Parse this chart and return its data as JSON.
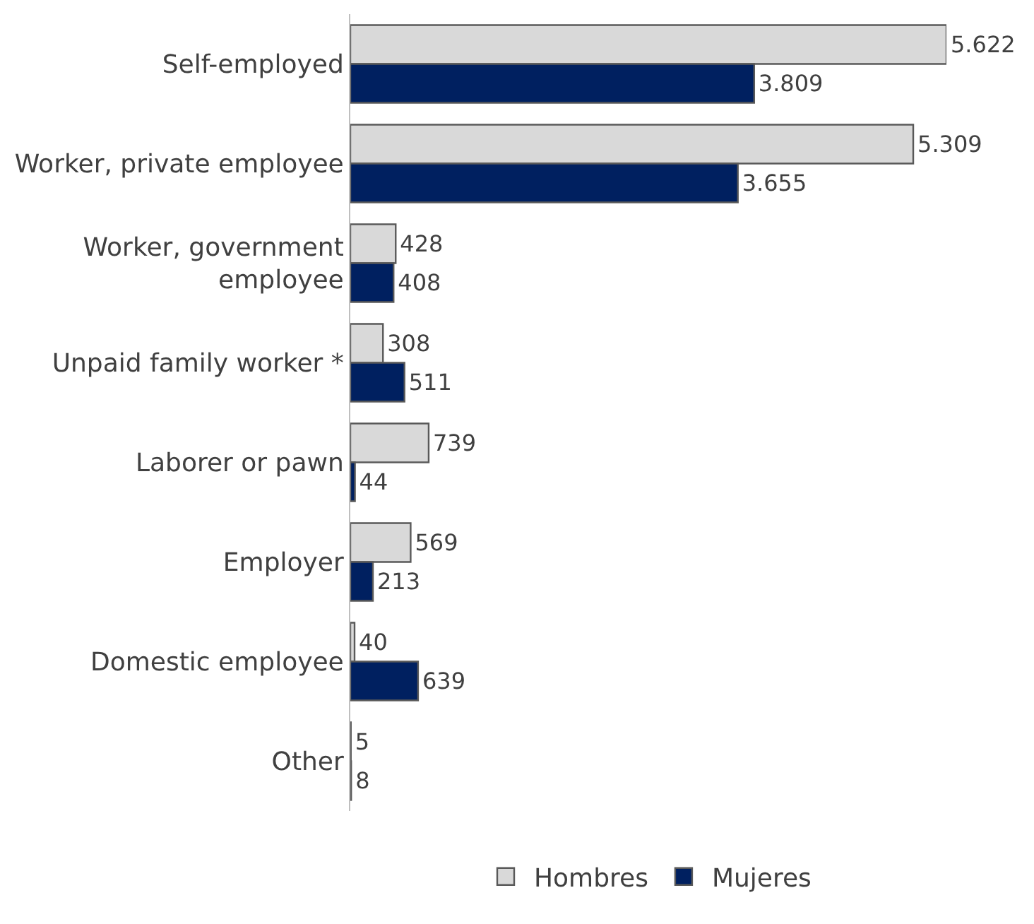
{
  "chart_data": {
    "type": "bar",
    "orientation": "horizontal",
    "categories": [
      "Self-employed",
      "Worker, private employee",
      "Worker, government\nemployee",
      "Unpaid family worker *",
      "Laborer or pawn",
      "Employer",
      "Domestic employee",
      "Other"
    ],
    "series": [
      {
        "name": "Hombres",
        "color": "#d9d9d9",
        "values": [
          5622,
          5309,
          428,
          308,
          739,
          569,
          40,
          5
        ],
        "value_labels": [
          "5.622",
          "5.309",
          "428",
          "308",
          "739",
          "569",
          "40",
          "5"
        ]
      },
      {
        "name": "Mujeres",
        "color": "#002060",
        "values": [
          3809,
          3655,
          408,
          511,
          44,
          213,
          639,
          8
        ],
        "value_labels": [
          "3.809",
          "3.655",
          "408",
          "511",
          "44",
          "213",
          "639",
          "8"
        ]
      }
    ],
    "legend": "bottom"
  }
}
